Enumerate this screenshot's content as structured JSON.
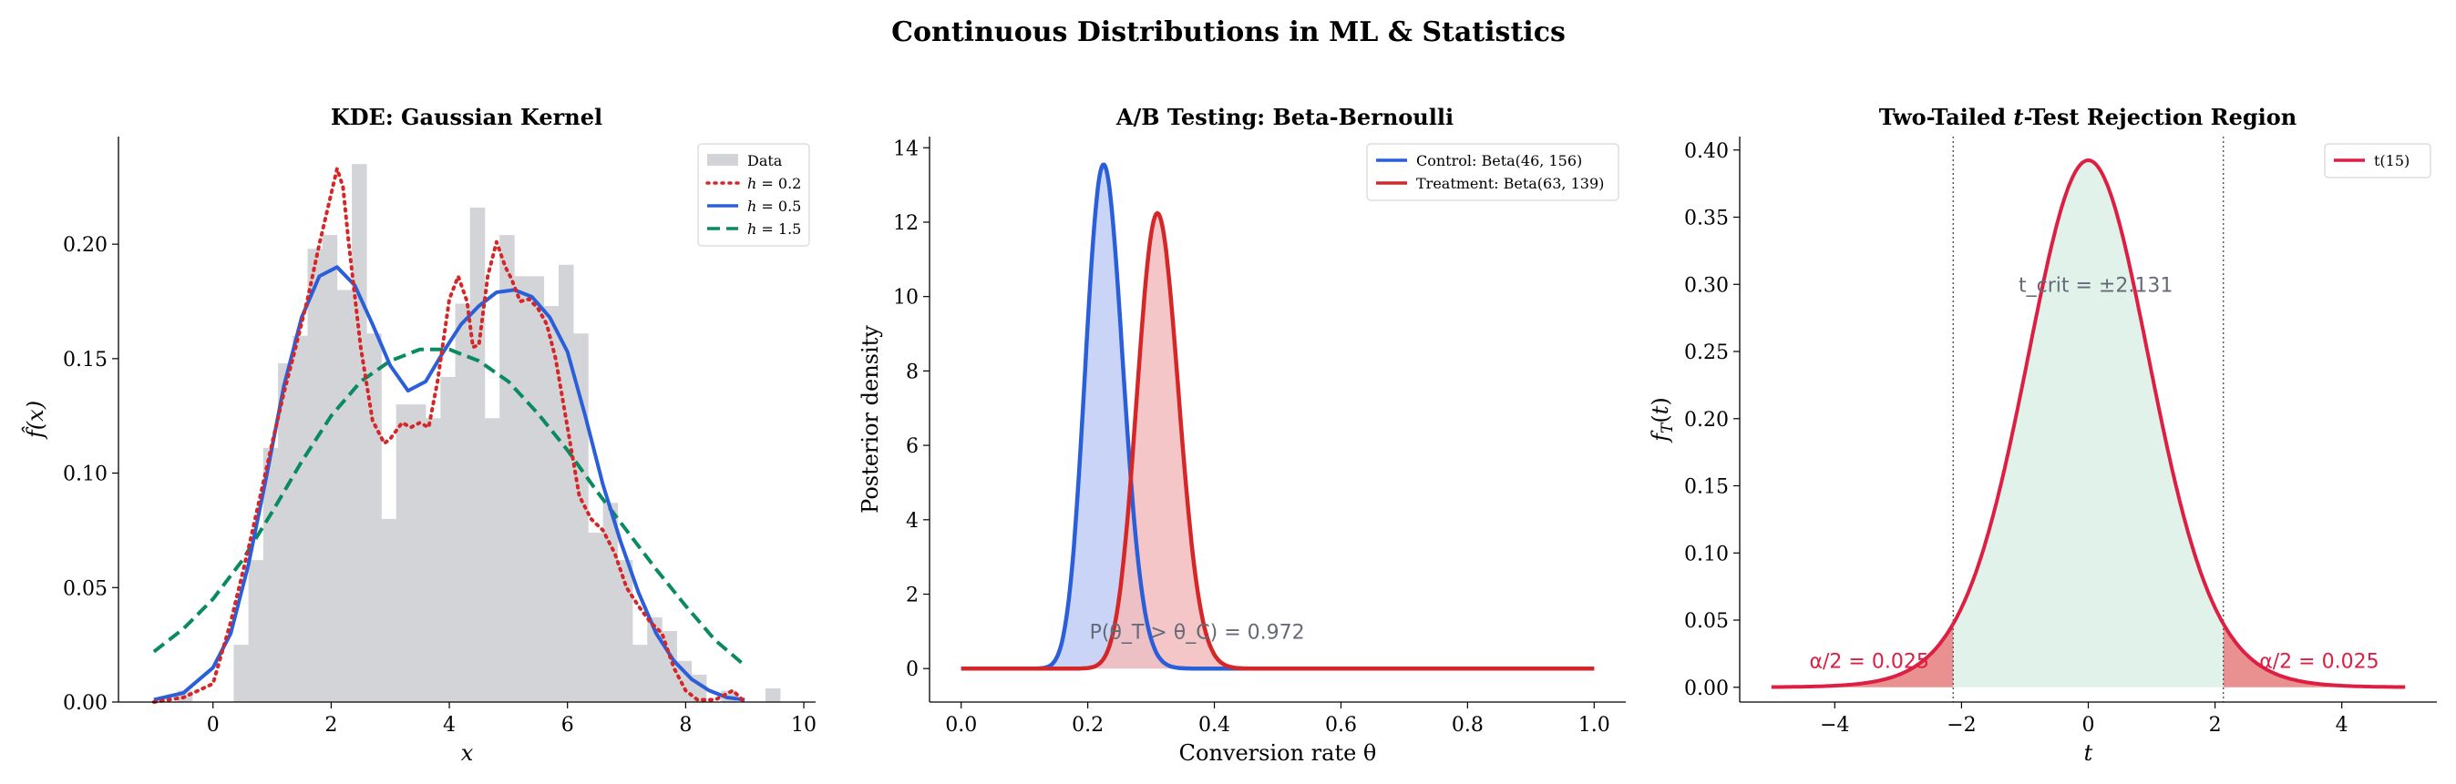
{
  "suptitle": "Continuous Distributions in ML & Statistics",
  "chart_data": [
    {
      "type": "histogram+line",
      "title": "KDE: Gaussian Kernel",
      "xlabel": "x",
      "ylabel": "f̂(x)",
      "xlim": [
        -1.6,
        10.2
      ],
      "ylim": [
        0,
        0.247
      ],
      "xticks": [
        0,
        2,
        4,
        6,
        8,
        10
      ],
      "yticks": [
        0.0,
        0.05,
        0.1,
        0.15,
        0.2
      ],
      "histogram": {
        "name": "Data",
        "color": "#d3d4d8",
        "bins": [
          {
            "left": -0.6,
            "right": -0.35,
            "h": 0.005
          },
          {
            "left": 0.35,
            "right": 0.6,
            "h": 0.025
          },
          {
            "left": 0.6,
            "right": 0.85,
            "h": 0.062
          },
          {
            "left": 0.85,
            "right": 1.1,
            "h": 0.111
          },
          {
            "left": 1.1,
            "right": 1.35,
            "h": 0.148
          },
          {
            "left": 1.35,
            "right": 1.6,
            "h": 0.16
          },
          {
            "left": 1.6,
            "right": 1.85,
            "h": 0.198
          },
          {
            "left": 1.85,
            "right": 2.1,
            "h": 0.204
          },
          {
            "left": 2.1,
            "right": 2.35,
            "h": 0.18
          },
          {
            "left": 2.35,
            "right": 2.6,
            "h": 0.235
          },
          {
            "left": 2.6,
            "right": 2.85,
            "h": 0.161
          },
          {
            "left": 2.85,
            "right": 3.1,
            "h": 0.08
          },
          {
            "left": 3.1,
            "right": 3.35,
            "h": 0.13
          },
          {
            "left": 3.35,
            "right": 3.6,
            "h": 0.13
          },
          {
            "left": 3.6,
            "right": 3.85,
            "h": 0.124
          },
          {
            "left": 3.85,
            "right": 4.1,
            "h": 0.142
          },
          {
            "left": 4.1,
            "right": 4.35,
            "h": 0.174
          },
          {
            "left": 4.35,
            "right": 4.6,
            "h": 0.216
          },
          {
            "left": 4.6,
            "right": 4.85,
            "h": 0.124
          },
          {
            "left": 4.85,
            "right": 5.1,
            "h": 0.204
          },
          {
            "left": 5.1,
            "right": 5.35,
            "h": 0.186
          },
          {
            "left": 5.35,
            "right": 5.6,
            "h": 0.186
          },
          {
            "left": 5.6,
            "right": 5.85,
            "h": 0.173
          },
          {
            "left": 5.85,
            "right": 6.1,
            "h": 0.191
          },
          {
            "left": 6.1,
            "right": 6.35,
            "h": 0.161
          },
          {
            "left": 6.35,
            "right": 6.6,
            "h": 0.074
          },
          {
            "left": 6.6,
            "right": 6.85,
            "h": 0.087
          },
          {
            "left": 6.85,
            "right": 7.1,
            "h": 0.062
          },
          {
            "left": 7.1,
            "right": 7.35,
            "h": 0.025
          },
          {
            "left": 7.35,
            "right": 7.6,
            "h": 0.037
          },
          {
            "left": 7.6,
            "right": 7.85,
            "h": 0.031
          },
          {
            "left": 7.85,
            "right": 8.1,
            "h": 0.018
          },
          {
            "left": 8.1,
            "right": 8.35,
            "h": 0.012
          },
          {
            "left": 8.6,
            "right": 8.85,
            "h": 0.005
          },
          {
            "left": 9.35,
            "right": 9.6,
            "h": 0.006
          }
        ]
      },
      "series": [
        {
          "name": "h = 0.2",
          "color": "#d62728",
          "style": "dotted",
          "x": [
            -1.0,
            -0.5,
            0.0,
            0.3,
            0.6,
            0.8,
            1.0,
            1.2,
            1.4,
            1.6,
            1.8,
            2.0,
            2.1,
            2.2,
            2.3,
            2.5,
            2.7,
            2.9,
            3.0,
            3.2,
            3.35,
            3.5,
            3.65,
            3.8,
            4.0,
            4.15,
            4.3,
            4.4,
            4.5,
            4.65,
            4.8,
            4.95,
            5.05,
            5.2,
            5.35,
            5.5,
            5.65,
            5.8,
            6.0,
            6.2,
            6.4,
            6.6,
            6.8,
            7.0,
            7.2,
            7.4,
            7.6,
            7.8,
            8.0,
            8.2,
            8.5,
            8.8,
            9.0
          ],
          "y": [
            0.0,
            0.002,
            0.008,
            0.035,
            0.067,
            0.09,
            0.113,
            0.135,
            0.155,
            0.176,
            0.2,
            0.222,
            0.233,
            0.225,
            0.2,
            0.155,
            0.123,
            0.113,
            0.115,
            0.122,
            0.12,
            0.122,
            0.12,
            0.14,
            0.176,
            0.186,
            0.175,
            0.155,
            0.156,
            0.186,
            0.201,
            0.19,
            0.185,
            0.175,
            0.176,
            0.172,
            0.165,
            0.15,
            0.12,
            0.09,
            0.08,
            0.075,
            0.065,
            0.05,
            0.042,
            0.035,
            0.03,
            0.015,
            0.005,
            0.001,
            0.001,
            0.005,
            0.0
          ]
        },
        {
          "name": "h = 0.5",
          "color": "#2b5fd9",
          "style": "solid",
          "x": [
            -1.0,
            -0.5,
            0.0,
            0.3,
            0.6,
            0.9,
            1.2,
            1.5,
            1.8,
            2.1,
            2.4,
            2.7,
            3.0,
            3.3,
            3.6,
            3.9,
            4.2,
            4.5,
            4.8,
            5.1,
            5.4,
            5.7,
            6.0,
            6.3,
            6.6,
            6.9,
            7.2,
            7.5,
            7.8,
            8.1,
            8.4,
            8.7,
            9.0
          ],
          "y": [
            0.001,
            0.004,
            0.015,
            0.03,
            0.06,
            0.098,
            0.138,
            0.168,
            0.186,
            0.19,
            0.182,
            0.165,
            0.147,
            0.136,
            0.14,
            0.153,
            0.165,
            0.173,
            0.179,
            0.18,
            0.177,
            0.168,
            0.153,
            0.125,
            0.095,
            0.07,
            0.048,
            0.03,
            0.018,
            0.01,
            0.005,
            0.002,
            0.001
          ]
        },
        {
          "name": "h = 1.5",
          "color": "#0a8a5f",
          "style": "dashed",
          "x": [
            -1.0,
            -0.5,
            0.0,
            0.5,
            1.0,
            1.5,
            2.0,
            2.5,
            3.0,
            3.5,
            4.0,
            4.5,
            5.0,
            5.5,
            6.0,
            6.5,
            7.0,
            7.5,
            8.0,
            8.5,
            9.0
          ],
          "y": [
            0.022,
            0.032,
            0.045,
            0.062,
            0.083,
            0.105,
            0.125,
            0.14,
            0.149,
            0.154,
            0.154,
            0.149,
            0.14,
            0.126,
            0.11,
            0.092,
            0.075,
            0.058,
            0.042,
            0.027,
            0.016
          ]
        }
      ],
      "legend": {
        "location": "upper right",
        "entries": [
          "Data",
          "h = 0.2",
          "h = 0.5",
          "h = 1.5"
        ]
      }
    },
    {
      "type": "area",
      "title": "A/B Testing: Beta-Bernoulli",
      "xlabel": "Conversion rate θ",
      "ylabel": "Posterior density",
      "xlim": [
        -0.05,
        1.05
      ],
      "ylim": [
        -0.9,
        14.3
      ],
      "xticks": [
        0.0,
        0.2,
        0.4,
        0.6,
        0.8,
        1.0
      ],
      "yticks": [
        0,
        2,
        4,
        6,
        8,
        10,
        12,
        14
      ],
      "series": [
        {
          "name": "Control: Beta(46, 156)",
          "color": "#2b5fd9",
          "fill": "#bfccf6",
          "alpha": 46,
          "beta": 156
        },
        {
          "name": "Treatment: Beta(63, 139)",
          "color": "#d62728",
          "fill": "#f3bcbd",
          "alpha": 63,
          "beta": 139
        }
      ],
      "annotation": {
        "text": "P(θ_T > θ_C) = 0.972",
        "x": 0.2,
        "y": 1.0,
        "color": "#666a78"
      },
      "legend": {
        "location": "upper right",
        "entries": [
          "Control: Beta(46, 156)",
          "Treatment: Beta(63, 139)"
        ]
      }
    },
    {
      "type": "line",
      "title": "Two-Tailed t-Test Rejection Region",
      "xlabel": "t",
      "ylabel": "f_T(t)",
      "xlim": [
        -5.5,
        5.5
      ],
      "ylim": [
        -0.011,
        0.41
      ],
      "xticks": [
        -4,
        -2,
        0,
        2,
        4
      ],
      "yticks": [
        0.0,
        0.05,
        0.1,
        0.15,
        0.2,
        0.25,
        0.3,
        0.35,
        0.4
      ],
      "df": 15,
      "t_crit": 2.131,
      "series": [
        {
          "name": "t(15)",
          "color": "#dc1f43"
        }
      ],
      "fill_center_color": "#e1f2ea",
      "fill_tail_color": "#e99090",
      "annotations": [
        {
          "text": "t_crit = ±2.131",
          "x": -1.1,
          "y": 0.3,
          "color": "#666a78"
        },
        {
          "text": "α/2 = 0.025",
          "x": -4.4,
          "y": 0.02,
          "color": "#dc1f43"
        },
        {
          "text": "α/2 = 0.025",
          "x": 2.7,
          "y": 0.02,
          "color": "#dc1f43"
        }
      ],
      "legend": {
        "location": "upper right",
        "entries": [
          "t(15)"
        ]
      }
    }
  ]
}
